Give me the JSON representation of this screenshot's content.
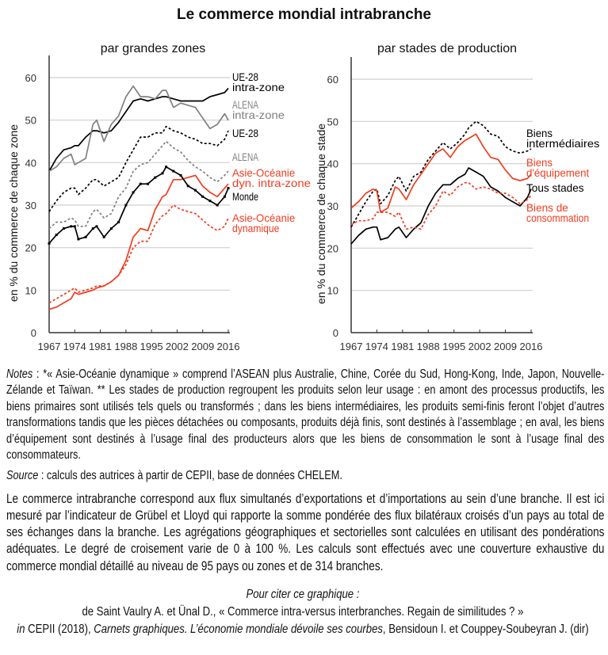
{
  "title": "Le commerce mondial intrabranche",
  "chart_data": [
    {
      "type": "line",
      "title": "par grandes zones",
      "ylabel": "en % du commerce de chaque zone",
      "ylim": [
        0,
        60
      ],
      "yticks": [
        0,
        10,
        20,
        30,
        40,
        50,
        60
      ],
      "xticks": [
        1967,
        1974,
        1981,
        1988,
        1995,
        2002,
        2009,
        2016
      ],
      "grid": "horizontal",
      "legend": "right (labels at line ends)",
      "x": [
        1967,
        1969,
        1971,
        1973,
        1974,
        1975,
        1977,
        1979,
        1980,
        1982,
        1984,
        1986,
        1988,
        1990,
        1992,
        1994,
        1996,
        1998,
        1999,
        2001,
        2003,
        2005,
        2007,
        2009,
        2011,
        2013,
        2015,
        2016
      ],
      "series": [
        {
          "name": "UE-28 intra-zone",
          "color": "#000000",
          "style": "solid",
          "label_lines": [
            "UE-28",
            "intra-zone"
          ],
          "values": [
            38,
            41,
            43,
            43.5,
            44,
            44,
            46,
            47.5,
            47.5,
            47,
            47.5,
            49.5,
            52,
            54.5,
            55,
            54.5,
            55,
            55.5,
            55.5,
            55,
            54.5,
            54.5,
            54.5,
            54.5,
            55.5,
            56,
            56.5,
            57.5
          ]
        },
        {
          "name": "ALENA intra-zone",
          "color": "#808080",
          "style": "solid",
          "label_lines": [
            "ALENA",
            "intra-zone"
          ],
          "values": [
            38,
            39,
            41,
            42,
            39.5,
            40,
            41,
            49,
            50,
            45,
            49,
            51,
            55.5,
            58,
            55.5,
            55.5,
            55,
            57,
            57,
            53,
            54,
            53.5,
            53,
            50.5,
            48,
            49,
            51.5,
            50
          ]
        },
        {
          "name": "UE-28",
          "color": "#000000",
          "style": "dashed",
          "label_lines": [
            "UE-28"
          ],
          "values": [
            28.5,
            31,
            33,
            34,
            34,
            32.5,
            34,
            36,
            36,
            34.5,
            35.5,
            36.5,
            40,
            43,
            46,
            46,
            47,
            47,
            48.5,
            47.5,
            47,
            46,
            45.5,
            44.5,
            44.5,
            44,
            45.5,
            47.5
          ]
        },
        {
          "name": "ALENA",
          "color": "#808080",
          "style": "dashed",
          "label_lines": [
            "ALENA"
          ],
          "values": [
            24.5,
            26,
            26,
            27,
            26.5,
            25,
            25,
            28.5,
            29,
            27,
            28,
            32,
            34,
            38,
            39.5,
            40,
            42,
            44,
            45,
            43.5,
            42.5,
            40.5,
            39,
            38,
            36.5,
            35.5,
            37,
            38
          ]
        },
        {
          "name": "Asie-Océanie dyn. intra-zone",
          "color": "#f03c1e",
          "style": "solid",
          "label_lines": [
            "Asie-Océanie",
            "dyn. intra-zone"
          ],
          "values": [
            5.5,
            6,
            7,
            8,
            9.5,
            9,
            9.5,
            10,
            10.5,
            11,
            12,
            13.5,
            17,
            22.5,
            24.5,
            24,
            29,
            32,
            32.5,
            36,
            36,
            36.5,
            37,
            34.5,
            33,
            32,
            34,
            35
          ]
        },
        {
          "name": "Monde",
          "color": "#000000",
          "style": "solid-markers",
          "label_lines": [
            "Monde"
          ],
          "values": [
            21,
            23,
            24.5,
            25,
            25,
            22,
            22.5,
            24.5,
            25,
            22.5,
            24.5,
            26,
            30,
            33,
            35,
            35,
            36.5,
            37.5,
            39,
            38,
            37,
            34.5,
            33.5,
            32,
            31,
            30,
            32,
            34
          ]
        },
        {
          "name": "Asie-Océanie dynamique",
          "color": "#f03c1e",
          "style": "dashed",
          "label_lines": [
            "Asie-Océanie",
            "dynamique"
          ],
          "values": [
            7,
            8,
            9,
            10,
            10.5,
            9.5,
            10,
            10.5,
            11,
            11,
            12,
            13.5,
            16,
            20,
            21.5,
            21.5,
            25.5,
            27.5,
            28,
            30,
            29,
            28.5,
            28,
            26.5,
            25,
            24,
            25,
            27
          ]
        }
      ]
    },
    {
      "type": "line",
      "title": "par stades de production",
      "ylabel": "en % du commerce de chaque stade",
      "ylim": [
        0,
        60
      ],
      "yticks": [
        0,
        10,
        20,
        30,
        40,
        50,
        60
      ],
      "xticks": [
        1967,
        1974,
        1981,
        1988,
        1995,
        2002,
        2009,
        2016
      ],
      "grid": "horizontal",
      "legend": "right (labels at line ends)",
      "x": [
        1967,
        1969,
        1971,
        1973,
        1974,
        1975,
        1977,
        1979,
        1980,
        1982,
        1984,
        1986,
        1988,
        1990,
        1992,
        1994,
        1996,
        1998,
        1999,
        2001,
        2003,
        2005,
        2007,
        2009,
        2011,
        2013,
        2015,
        2016
      ],
      "series": [
        {
          "name": "Biens intermédiaires",
          "color": "#000000",
          "style": "dashed",
          "label_lines": [
            "Biens",
            "intermédiaires"
          ],
          "values": [
            25,
            28,
            31,
            33.5,
            34,
            30.5,
            32.5,
            36,
            37,
            33.5,
            37,
            38,
            41,
            43,
            45,
            43.5,
            45,
            47,
            48.5,
            50,
            49,
            47,
            46.5,
            44,
            43,
            42.5,
            43,
            43.5
          ]
        },
        {
          "name": "Biens d'équipement",
          "color": "#f03c1e",
          "style": "solid",
          "label_lines": [
            "Biens",
            "d'équipement"
          ],
          "values": [
            29.5,
            31,
            33,
            34,
            33.5,
            28.5,
            29.5,
            34.5,
            34,
            31.5,
            35,
            37.5,
            40,
            42.5,
            43.5,
            41.5,
            44,
            45.5,
            46,
            47,
            44,
            41.5,
            41,
            38.5,
            36.5,
            36,
            36.5,
            37.5
          ]
        },
        {
          "name": "Tous stades",
          "color": "#000000",
          "style": "solid",
          "label_lines": [
            "Tous stades"
          ],
          "values": [
            21,
            23,
            24.5,
            25,
            25,
            22,
            22.5,
            24.5,
            25,
            22.5,
            24.5,
            26,
            30,
            33,
            35,
            35,
            36.5,
            37.5,
            39,
            38,
            37,
            34.5,
            33.5,
            32,
            31,
            30,
            32,
            34
          ]
        },
        {
          "name": "Biens de consommation",
          "color": "#f03c1e",
          "style": "dashed",
          "label_lines": [
            "Biens de",
            "consommation"
          ],
          "values": [
            25.5,
            26.5,
            26.5,
            27,
            28.5,
            28.5,
            28.5,
            27.5,
            28.5,
            24.5,
            25,
            24.5,
            28,
            30,
            33.5,
            32.5,
            34.5,
            35.5,
            35.5,
            34,
            34.5,
            34,
            33,
            33,
            32,
            30.5,
            31.5,
            32.5
          ]
        }
      ]
    }
  ],
  "notes": {
    "label": "Notes",
    "text": " : *« Asie-Océanie dynamique » comprend l’ASEAN plus Australie, Chine, Corée du Sud, Hong-Kong, Inde, Japon, Nouvelle-Zélande et Taïwan. ** Les stades de production regroupent les produits selon leur usage : en amont des processus productifs, les biens primaires sont utilisés tels quels ou transformés ; dans les biens intermédiaires, les produits semi-finis feront l’objet d’autres transformations tandis que les pièces détachées ou composants, produits déjà finis, sont destinés à l’assemblage ; en aval, les biens d’équipement sont destinés à l’usage final des producteurs alors que les biens de consommation le sont à l’usage final des consommateurs.",
    "source_label": "Source",
    "source_text": " : calculs des autrices à partir de CEPII, base de données CHELEM."
  },
  "paragraph": "Le commerce intrabranche correspond aux flux simultanés d’exportations et d’importations au sein d’une branche. Il est ici mesuré par l’indicateur de Grübel et Lloyd qui rapporte la somme pondérée des flux bilatéraux croisés d’un pays au total de ses échanges dans la branche. Les agrégations géographiques et sectorielles sont calculées en utilisant des pondérations adéquates. Le degré de croisement varie de 0 à 100 %. Les calculs sont effectués avec une couverture exhaustive du commerce mondial détaillé au niveau de 95 pays ou zones et de 314 branches.",
  "citation": {
    "heading": "Pour citer ce graphique :",
    "line1": "de Saint Vaulry A. et Ünal D., « Commerce intra-versus interbranches. Regain de similitudes ? »",
    "in": "in",
    "line2a": " CEPII (2018), ",
    "line2b": "Carnets graphiques. L’économie mondiale dévoile ses courbes",
    "line2c": ", Bensidoun I. et Couppey-Soubeyran J. (dir)"
  }
}
